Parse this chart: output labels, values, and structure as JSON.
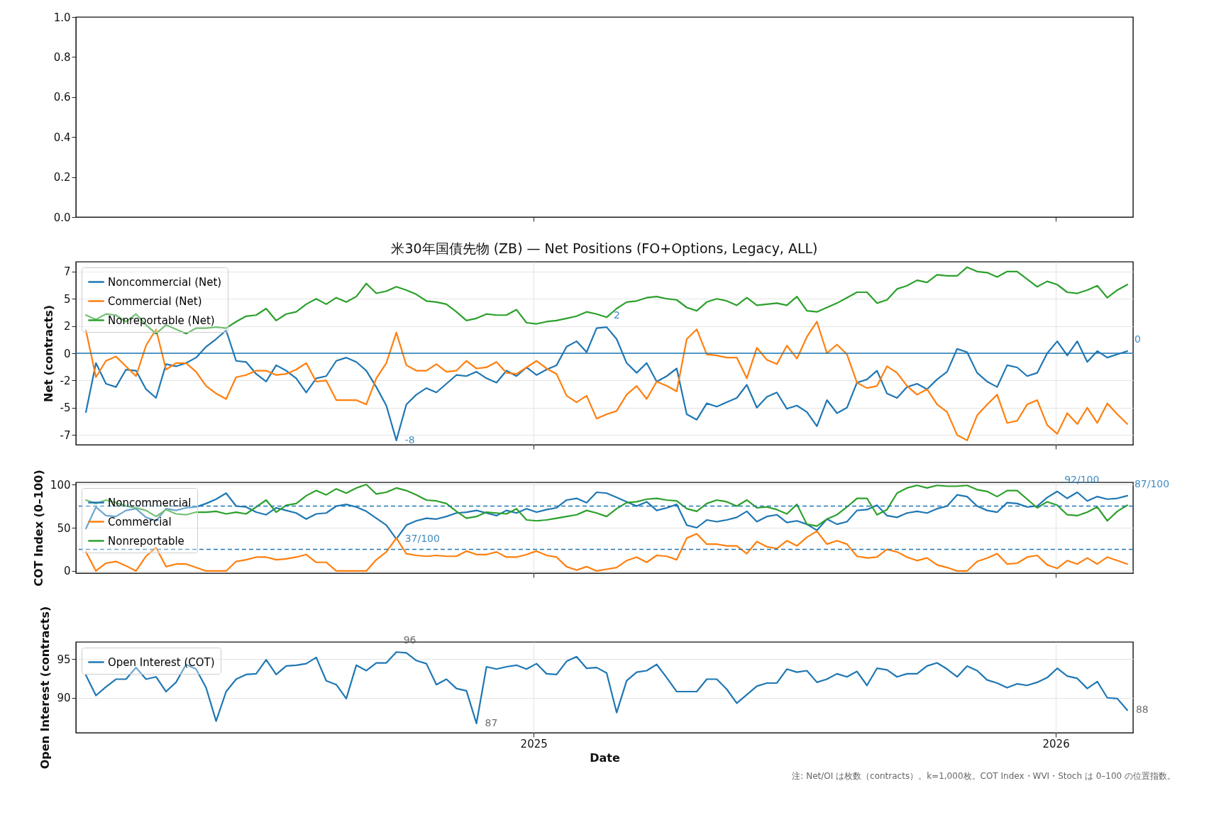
{
  "chart_data": [
    {
      "type": "line",
      "xlim": [
        "2024-02-16",
        "2026-02-24"
      ],
      "xticks": [
        {
          "value": "2025-01-01",
          "label": null
        },
        {
          "value": "2026-01-01",
          "label": null
        }
      ],
      "ylim": [
        0,
        1
      ],
      "yticks": [
        {
          "value": 0,
          "label": "0.0"
        },
        {
          "value": 0.2,
          "label": "0.2"
        },
        {
          "value": 0.4,
          "label": "0.4"
        },
        {
          "value": 0.6,
          "label": "0.6"
        },
        {
          "value": 0.8,
          "label": "0.8"
        },
        {
          "value": 1,
          "label": "1.0"
        }
      ],
      "tick_labels": "y"
    },
    {
      "type": "line",
      "title": "米30年国債先物 (ZB) — Net Positions (FO+Options, Legacy, ALL)",
      "ylabel": "Net (contracts)",
      "x": [
        "2024-02-23",
        "2024-03-01",
        "2024-03-08",
        "2024-03-15",
        "2024-03-22",
        "2024-03-29",
        "2024-04-05",
        "2024-04-12",
        "2024-04-19",
        "2024-04-26",
        "2024-05-03",
        "2024-05-10",
        "2024-05-17",
        "2024-05-24",
        "2024-05-31",
        "2024-06-07",
        "2024-06-14",
        "2024-06-21",
        "2024-06-28",
        "2024-07-05",
        "2024-07-12",
        "2024-07-19",
        "2024-07-26",
        "2024-08-02",
        "2024-08-09",
        "2024-08-16",
        "2024-08-23",
        "2024-08-30",
        "2024-09-06",
        "2024-09-13",
        "2024-09-20",
        "2024-09-27",
        "2024-10-04",
        "2024-10-11",
        "2024-10-18",
        "2024-10-25",
        "2024-11-01",
        "2024-11-08",
        "2024-11-15",
        "2024-11-22",
        "2024-11-29",
        "2024-12-06",
        "2024-12-13",
        "2024-12-20",
        "2024-12-27",
        "2025-01-03",
        "2025-01-10",
        "2025-01-17",
        "2025-01-24",
        "2025-01-31",
        "2025-02-07",
        "2025-02-14",
        "2025-02-21",
        "2025-02-28",
        "2025-03-07",
        "2025-03-14",
        "2025-03-21",
        "2025-03-28",
        "2025-04-04",
        "2025-04-11",
        "2025-04-18",
        "2025-04-25",
        "2025-05-02",
        "2025-05-09",
        "2025-05-16",
        "2025-05-23",
        "2025-05-30",
        "2025-06-06",
        "2025-06-13",
        "2025-06-20",
        "2025-06-27",
        "2025-07-04",
        "2025-07-11",
        "2025-07-18",
        "2025-07-25",
        "2025-08-01",
        "2025-08-08",
        "2025-08-15",
        "2025-08-22",
        "2025-08-29",
        "2025-09-05",
        "2025-09-12",
        "2025-09-19",
        "2025-09-26",
        "2025-10-03",
        "2025-10-10",
        "2025-10-17",
        "2025-10-24",
        "2025-10-31",
        "2025-11-07",
        "2025-11-14",
        "2025-11-21",
        "2025-11-28",
        "2025-12-05",
        "2025-12-12",
        "2025-12-19",
        "2025-12-26",
        "2026-01-02",
        "2026-01-09",
        "2026-01-16",
        "2026-01-23",
        "2026-01-30",
        "2026-02-06",
        "2026-02-13",
        "2026-02-20"
      ],
      "series": [
        {
          "name": "Noncommercial (Net)",
          "color": "#1f77b4",
          "values": [
            -5.4,
            -0.9,
            -2.8,
            -3.1,
            -1.5,
            -1.6,
            -3.3,
            -4.1,
            -1.0,
            -1.2,
            -0.9,
            -0.4,
            0.6,
            1.3,
            2.1,
            -0.7,
            -0.8,
            -1.9,
            -2.6,
            -1.1,
            -1.6,
            -2.3,
            -3.6,
            -2.3,
            -2.1,
            -0.7,
            -0.4,
            -0.8,
            -1.6,
            -3.1,
            -4.8,
            -8.0,
            -4.7,
            -3.8,
            -3.2,
            -3.6,
            -2.8,
            -2.0,
            -2.1,
            -1.7,
            -2.3,
            -2.7,
            -1.6,
            -2.1,
            -1.3,
            -2.0,
            -1.5,
            -1.1,
            0.6,
            1.1,
            0.1,
            2.3,
            2.4,
            1.3,
            -0.9,
            -1.8,
            -0.9,
            -2.6,
            -2.1,
            -1.4,
            -5.6,
            -6.1,
            -4.6,
            -4.9,
            -4.5,
            -4.1,
            -2.9,
            -5.0,
            -4.0,
            -3.6,
            -5.1,
            -4.8,
            -5.4,
            -6.7,
            -4.3,
            -5.5,
            -5.0,
            -2.7,
            -2.4,
            -1.6,
            -3.7,
            -4.1,
            -3.1,
            -2.8,
            -3.3,
            -2.4,
            -1.7,
            0.4,
            0.1,
            -1.8,
            -2.6,
            -3.1,
            -1.1,
            -1.3,
            -2.1,
            -1.8,
            0.0,
            1.1,
            -0.2,
            1.1,
            -0.8,
            0.2,
            -0.4,
            -0.1,
            0.2
          ]
        },
        {
          "name": "Commercial (Net)",
          "color": "#ff7f0e",
          "values": [
            2.1,
            -2.2,
            -0.7,
            -0.3,
            -1.2,
            -2.1,
            0.7,
            2.2,
            -1.5,
            -0.9,
            -0.9,
            -1.7,
            -3.0,
            -3.7,
            -4.2,
            -2.2,
            -2.0,
            -1.6,
            -1.6,
            -2.0,
            -1.9,
            -1.5,
            -0.9,
            -2.6,
            -2.5,
            -4.3,
            -4.3,
            -4.3,
            -4.7,
            -2.3,
            -0.9,
            1.9,
            -1.1,
            -1.6,
            -1.6,
            -1.0,
            -1.7,
            -1.6,
            -0.7,
            -1.4,
            -1.3,
            -0.8,
            -1.8,
            -1.9,
            -1.3,
            -0.7,
            -1.4,
            -1.9,
            -3.9,
            -4.5,
            -3.9,
            -6.0,
            -5.6,
            -5.3,
            -3.8,
            -3.0,
            -4.2,
            -2.6,
            -3.0,
            -3.5,
            1.3,
            2.2,
            -0.1,
            -0.2,
            -0.4,
            -0.4,
            -2.3,
            0.5,
            -0.6,
            -1.0,
            0.7,
            -0.5,
            1.5,
            2.9,
            0.0,
            0.8,
            -0.1,
            -2.7,
            -3.2,
            -3.0,
            -1.2,
            -1.8,
            -3.0,
            -3.8,
            -3.3,
            -4.7,
            -5.4,
            -7.5,
            -8.0,
            -5.7,
            -4.7,
            -3.8,
            -6.4,
            -6.2,
            -4.7,
            -4.3,
            -6.6,
            -7.4,
            -5.5,
            -6.5,
            -5.0,
            -6.4,
            -4.6,
            -5.6,
            -6.5
          ]
        },
        {
          "name": "Nonreportable (Net)",
          "color": "#2ca02c",
          "values": [
            3.5,
            3.1,
            3.6,
            3.5,
            2.9,
            3.6,
            2.6,
            1.8,
            2.6,
            2.2,
            1.8,
            2.3,
            2.3,
            2.4,
            2.3,
            2.9,
            3.4,
            3.5,
            4.1,
            3.0,
            3.6,
            3.8,
            4.5,
            5.0,
            4.5,
            5.1,
            4.7,
            5.2,
            6.4,
            5.5,
            5.7,
            6.1,
            5.8,
            5.4,
            4.8,
            4.7,
            4.5,
            3.8,
            3.0,
            3.2,
            3.6,
            3.5,
            3.5,
            4.0,
            2.8,
            2.7,
            2.9,
            3.0,
            3.2,
            3.4,
            3.8,
            3.6,
            3.3,
            4.1,
            4.7,
            4.8,
            5.1,
            5.2,
            5.0,
            4.9,
            4.2,
            3.9,
            4.7,
            5.0,
            4.8,
            4.4,
            5.1,
            4.4,
            4.5,
            4.6,
            4.4,
            5.2,
            3.9,
            3.8,
            4.2,
            4.6,
            5.1,
            5.6,
            5.6,
            4.6,
            4.9,
            5.9,
            6.2,
            6.7,
            6.5,
            7.2,
            7.1,
            7.1,
            7.9,
            7.5,
            7.4,
            7.0,
            7.5,
            7.5,
            6.8,
            6.1,
            6.6,
            6.3,
            5.6,
            5.5,
            5.8,
            6.2,
            5.1,
            5.8,
            6.3
          ]
        }
      ],
      "xlim": [
        "2024-02-16",
        "2026-02-24"
      ],
      "xticks": [
        {
          "value": "2025-01-01",
          "label": null
        },
        {
          "value": "2026-01-01",
          "label": null
        }
      ],
      "ylim": [
        -8.4,
        8.4
      ],
      "yticks": [
        {
          "value": 7.5,
          "label": "7"
        },
        5,
        {
          "value": 2.5,
          "label": "2"
        },
        0,
        {
          "value": -2.5,
          "label": "-2"
        },
        -5,
        {
          "value": -7.5,
          "label": "-7"
        }
      ],
      "ref_lines": [
        {
          "axis": "y",
          "value": 0,
          "color": "#1f77b4"
        }
      ],
      "annotations": [
        {
          "text": "-8",
          "x": "2024-09-27",
          "y": -8.0
        },
        {
          "text": "2",
          "x": "2025-02-21",
          "y": 2.4
        },
        {
          "text": "0",
          "x": "2026-02-20",
          "y": 0.2
        }
      ],
      "grid": true,
      "legend": "top left",
      "tick_labels": "y"
    },
    {
      "type": "line",
      "ylabel": "COT Index (0–100)",
      "x": [
        "2024-02-23",
        "2024-03-01",
        "2024-03-08",
        "2024-03-15",
        "2024-03-22",
        "2024-03-29",
        "2024-04-05",
        "2024-04-12",
        "2024-04-19",
        "2024-04-26",
        "2024-05-03",
        "2024-05-10",
        "2024-05-17",
        "2024-05-24",
        "2024-05-31",
        "2024-06-07",
        "2024-06-14",
        "2024-06-21",
        "2024-06-28",
        "2024-07-05",
        "2024-07-12",
        "2024-07-19",
        "2024-07-26",
        "2024-08-02",
        "2024-08-09",
        "2024-08-16",
        "2024-08-23",
        "2024-08-30",
        "2024-09-06",
        "2024-09-13",
        "2024-09-20",
        "2024-09-27",
        "2024-10-04",
        "2024-10-11",
        "2024-10-18",
        "2024-10-25",
        "2024-11-01",
        "2024-11-08",
        "2024-11-15",
        "2024-11-22",
        "2024-11-29",
        "2024-12-06",
        "2024-12-13",
        "2024-12-20",
        "2024-12-27",
        "2025-01-03",
        "2025-01-10",
        "2025-01-17",
        "2025-01-24",
        "2025-01-31",
        "2025-02-07",
        "2025-02-14",
        "2025-02-21",
        "2025-02-28",
        "2025-03-07",
        "2025-03-14",
        "2025-03-21",
        "2025-03-28",
        "2025-04-04",
        "2025-04-11",
        "2025-04-18",
        "2025-04-25",
        "2025-05-02",
        "2025-05-09",
        "2025-05-16",
        "2025-05-23",
        "2025-05-30",
        "2025-06-06",
        "2025-06-13",
        "2025-06-20",
        "2025-06-27",
        "2025-07-04",
        "2025-07-11",
        "2025-07-18",
        "2025-07-25",
        "2025-08-01",
        "2025-08-08",
        "2025-08-15",
        "2025-08-22",
        "2025-08-29",
        "2025-09-05",
        "2025-09-12",
        "2025-09-19",
        "2025-09-26",
        "2025-10-03",
        "2025-10-10",
        "2025-10-17",
        "2025-10-24",
        "2025-10-31",
        "2025-11-07",
        "2025-11-14",
        "2025-11-21",
        "2025-11-28",
        "2025-12-05",
        "2025-12-12",
        "2025-12-19",
        "2025-12-26",
        "2026-01-02",
        "2026-01-09",
        "2026-01-16",
        "2026-01-23",
        "2026-01-30",
        "2026-02-06",
        "2026-02-13",
        "2026-02-20"
      ],
      "series": [
        {
          "name": "Noncommercial",
          "color": "#1f77b4",
          "values": [
            49,
            74,
            64,
            63,
            70,
            72,
            62,
            58,
            72,
            70,
            73,
            74,
            78,
            83,
            90,
            75,
            74,
            68,
            65,
            73,
            70,
            67,
            60,
            66,
            67,
            75,
            77,
            74,
            69,
            61,
            53,
            37,
            53,
            58,
            61,
            60,
            63,
            67,
            68,
            70,
            67,
            64,
            70,
            67,
            72,
            68,
            71,
            73,
            82,
            84,
            79,
            91,
            90,
            85,
            80,
            75,
            80,
            70,
            73,
            77,
            53,
            50,
            59,
            57,
            59,
            62,
            69,
            57,
            63,
            65,
            56,
            58,
            54,
            47,
            60,
            54,
            57,
            70,
            71,
            76,
            64,
            62,
            67,
            69,
            67,
            72,
            75,
            88,
            86,
            75,
            70,
            68,
            79,
            78,
            74,
            75,
            85,
            92,
            84,
            91,
            81,
            86,
            83,
            84,
            87
          ]
        },
        {
          "name": "Commercial",
          "color": "#ff7f0e",
          "values": [
            22,
            0,
            9,
            11,
            6,
            0,
            17,
            27,
            5,
            8,
            8,
            4,
            0,
            0,
            0,
            11,
            13,
            16,
            16,
            13,
            14,
            16,
            19,
            10,
            10,
            0,
            0,
            0,
            0,
            13,
            22,
            38,
            20,
            18,
            17,
            18,
            17,
            17,
            23,
            19,
            19,
            22,
            16,
            16,
            19,
            23,
            18,
            16,
            5,
            1,
            5,
            0,
            2,
            4,
            12,
            16,
            10,
            18,
            17,
            13,
            38,
            43,
            31,
            31,
            29,
            29,
            20,
            34,
            28,
            26,
            35,
            29,
            39,
            46,
            31,
            35,
            31,
            17,
            15,
            16,
            25,
            22,
            16,
            12,
            15,
            7,
            4,
            0,
            0,
            11,
            15,
            20,
            8,
            9,
            16,
            18,
            7,
            3,
            12,
            8,
            15,
            8,
            16,
            12,
            8
          ]
        },
        {
          "name": "Nonreportable",
          "color": "#2ca02c",
          "values": [
            82,
            78,
            82,
            79,
            75,
            73,
            70,
            63,
            71,
            66,
            65,
            68,
            68,
            69,
            66,
            68,
            66,
            74,
            82,
            68,
            76,
            78,
            87,
            93,
            88,
            95,
            90,
            96,
            100,
            89,
            91,
            96,
            93,
            88,
            82,
            81,
            78,
            69,
            61,
            63,
            68,
            67,
            66,
            72,
            59,
            58,
            59,
            61,
            63,
            65,
            70,
            67,
            63,
            72,
            79,
            80,
            83,
            84,
            82,
            81,
            72,
            69,
            78,
            82,
            80,
            75,
            82,
            73,
            74,
            71,
            66,
            77,
            54,
            52,
            60,
            65,
            74,
            84,
            84,
            65,
            71,
            90,
            96,
            99,
            96,
            99,
            98,
            98,
            99,
            94,
            92,
            86,
            93,
            93,
            83,
            73,
            80,
            76,
            65,
            64,
            68,
            74,
            58,
            69,
            76
          ]
        }
      ],
      "xlim": [
        "2024-02-16",
        "2026-02-24"
      ],
      "xticks": [
        {
          "value": "2025-01-01",
          "label": null
        },
        {
          "value": "2026-01-01",
          "label": null
        }
      ],
      "ylim": [
        -2.5,
        102.5
      ],
      "yticks": [
        0,
        50,
        100
      ],
      "ref_lines": [
        {
          "axis": "y",
          "value": 75,
          "color": "#1f77b4",
          "line_style": "dashed"
        },
        {
          "axis": "y",
          "value": 25,
          "color": "#1f77b4",
          "line_style": "dashed"
        }
      ],
      "annotations": [
        {
          "text": "37/100",
          "x": "2024-09-27",
          "y": 37
        },
        {
          "text": "92/100",
          "x": "2026-01-02",
          "y": 92
        },
        {
          "text": "87/100",
          "x": "2026-02-20",
          "y": 87
        }
      ],
      "grid": true,
      "legend": "top left",
      "tick_labels": "y"
    },
    {
      "type": "line",
      "xlabel": "Date",
      "ylabel": "Open Interest (contracts)",
      "x": [
        "2024-02-23",
        "2024-03-01",
        "2024-03-08",
        "2024-03-15",
        "2024-03-22",
        "2024-03-29",
        "2024-04-05",
        "2024-04-12",
        "2024-04-19",
        "2024-04-26",
        "2024-05-03",
        "2024-05-10",
        "2024-05-17",
        "2024-05-24",
        "2024-05-31",
        "2024-06-07",
        "2024-06-14",
        "2024-06-21",
        "2024-06-28",
        "2024-07-05",
        "2024-07-12",
        "2024-07-19",
        "2024-07-26",
        "2024-08-02",
        "2024-08-09",
        "2024-08-16",
        "2024-08-23",
        "2024-08-30",
        "2024-09-06",
        "2024-09-13",
        "2024-09-20",
        "2024-09-27",
        "2024-10-04",
        "2024-10-11",
        "2024-10-18",
        "2024-10-25",
        "2024-11-01",
        "2024-11-08",
        "2024-11-15",
        "2024-11-22",
        "2024-11-29",
        "2024-12-06",
        "2024-12-13",
        "2024-12-20",
        "2024-12-27",
        "2025-01-03",
        "2025-01-10",
        "2025-01-17",
        "2025-01-24",
        "2025-01-31",
        "2025-02-07",
        "2025-02-14",
        "2025-02-21",
        "2025-02-28",
        "2025-03-07",
        "2025-03-14",
        "2025-03-21",
        "2025-03-28",
        "2025-04-04",
        "2025-04-11",
        "2025-04-18",
        "2025-04-25",
        "2025-05-02",
        "2025-05-09",
        "2025-05-16",
        "2025-05-23",
        "2025-05-30",
        "2025-06-06",
        "2025-06-13",
        "2025-06-20",
        "2025-06-27",
        "2025-07-04",
        "2025-07-11",
        "2025-07-18",
        "2025-07-25",
        "2025-08-01",
        "2025-08-08",
        "2025-08-15",
        "2025-08-22",
        "2025-08-29",
        "2025-09-05",
        "2025-09-12",
        "2025-09-19",
        "2025-09-26",
        "2025-10-03",
        "2025-10-10",
        "2025-10-17",
        "2025-10-24",
        "2025-10-31",
        "2025-11-07",
        "2025-11-14",
        "2025-11-21",
        "2025-11-28",
        "2025-12-05",
        "2025-12-12",
        "2025-12-19",
        "2025-12-26",
        "2026-01-02",
        "2026-01-09",
        "2026-01-16",
        "2026-01-23",
        "2026-01-30",
        "2026-02-06",
        "2026-02-13",
        "2026-02-20"
      ],
      "series": [
        {
          "name": "Open Interest (COT)",
          "color": "#1f77b4",
          "values": [
            92.9,
            90.3,
            91.4,
            92.4,
            92.4,
            93.9,
            92.4,
            92.7,
            90.8,
            92.0,
            94.3,
            93.7,
            91.3,
            87.0,
            90.8,
            92.4,
            93.0,
            93.1,
            94.9,
            93.0,
            94.1,
            94.2,
            94.4,
            95.2,
            92.2,
            91.7,
            89.9,
            94.2,
            93.5,
            94.5,
            94.5,
            95.9,
            95.8,
            94.8,
            94.4,
            91.7,
            92.4,
            91.2,
            90.9,
            86.7,
            94.0,
            93.7,
            94.0,
            94.2,
            93.7,
            94.4,
            93.1,
            93.0,
            94.7,
            95.3,
            93.8,
            93.9,
            93.2,
            88.1,
            92.2,
            93.3,
            93.5,
            94.3,
            92.6,
            90.8,
            90.8,
            90.8,
            92.4,
            92.4,
            91.1,
            89.3,
            90.4,
            91.5,
            91.9,
            91.9,
            93.7,
            93.3,
            93.5,
            92.0,
            92.4,
            93.1,
            92.7,
            93.4,
            91.6,
            93.8,
            93.6,
            92.7,
            93.1,
            93.1,
            94.1,
            94.5,
            93.7,
            92.7,
            94.1,
            93.5,
            92.3,
            91.9,
            91.3,
            91.8,
            91.6,
            92.0,
            92.6,
            93.8,
            92.8,
            92.5,
            91.2,
            92.1,
            90.0,
            89.9,
            88.4
          ]
        }
      ],
      "xlim": [
        "2024-02-16",
        "2026-02-24"
      ],
      "xticks": [
        {
          "value": "2025-01-01",
          "label": "2025"
        },
        {
          "value": "2026-01-01",
          "label": "2026"
        }
      ],
      "ylim": [
        85.5,
        97.2
      ],
      "yticks": [
        90,
        95
      ],
      "annotations": [
        {
          "text": "96",
          "x": "2024-09-27",
          "y": 95.9
        },
        {
          "text": "87",
          "x": "2024-11-22",
          "y": 86.7
        },
        {
          "text": "88",
          "x": "2026-02-20",
          "y": 88.4
        },
        "注: Net/OI は枚数（contracts）。k=1,000枚。COT Index・WVI・Stoch は 0–100 の位置指数。"
      ],
      "grid": true,
      "legend": "top left"
    }
  ]
}
